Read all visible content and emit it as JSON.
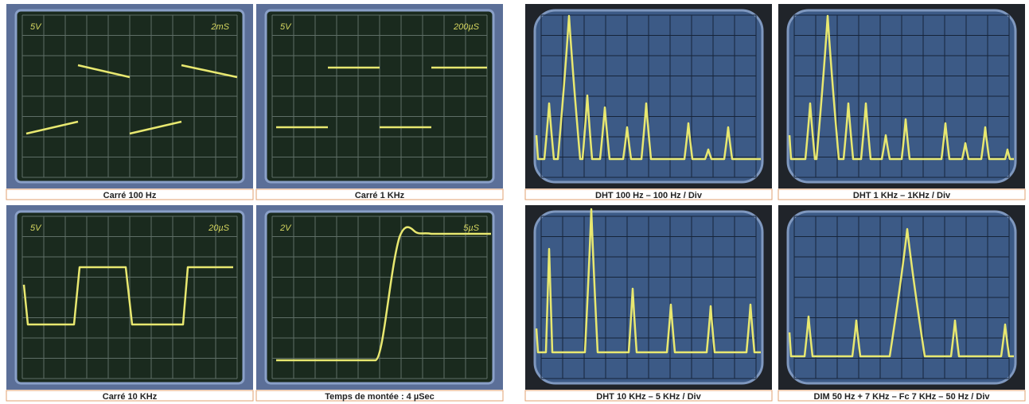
{
  "panels": [
    {
      "caption": "Carré 100 Hz",
      "volts": "5V",
      "time": "2mS"
    },
    {
      "caption": "Carré 1 KHz",
      "volts": "5V",
      "time": "200µS"
    },
    {
      "caption": "DHT  100 Hz – 100 Hz / Div"
    },
    {
      "caption": "DHT  1 KHz – 1KHz / Div"
    },
    {
      "caption": "Carré 10 KHz",
      "volts": "5V",
      "time": "20µS"
    },
    {
      "caption": "Temps de montée :  4 µSec",
      "volts": "2V",
      "time": "5µS"
    },
    {
      "caption": "DHT 10 KHz – 5 KHz / Div"
    },
    {
      "caption": "DIM 50 Hz + 7 KHz – Fc 7 KHz – 50 Hz / Div"
    }
  ]
}
